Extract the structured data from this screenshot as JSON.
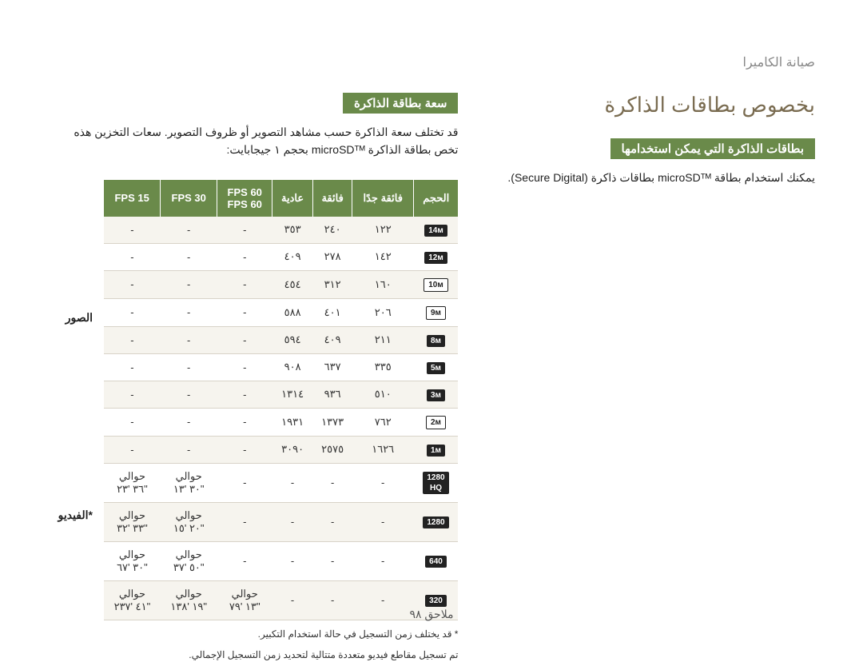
{
  "breadcrumb": "صيانة الكاميرا",
  "page_footer": "ملاحق  ٩٨",
  "right_col": {
    "main_title": "بخصوص بطاقات الذاكرة",
    "section1_tab": "بطاقات الذاكرة التي يمكن استخدامها",
    "section1_text": "يمكنك استخدام بطاقة microSDᵀᴹ بطاقات ذاكرة (Secure Digital)."
  },
  "left_col": {
    "section_tab": "سعة بطاقة الذاكرة",
    "intro_text": "قد تختلف سعة الذاكرة حسب مشاهد التصوير أو ظروف التصوير. سعات التخزين هذه تخص بطاقة الذاكرة microSDᵀᴹ بحجم ١ جيجابايت:",
    "footnote1": "* قد يختلف زمن التسجيل في حالة استخدام التكبير.",
    "footnote2": "تم تسجيل مقاطع فيديو متعددة متتالية لتحديد زمن التسجيل الإجمالي.",
    "side_label_photo": "الصور",
    "side_label_video": "*الفيديو",
    "table": {
      "background_color": "#ffffff",
      "header_bg": "#6a8a4a",
      "header_text_color": "#ffffff",
      "row_alt_bg": "#f6f4ee",
      "border_color": "#d8d3c8",
      "columns": [
        "الحجم",
        "فائقة جدًا",
        "فائقة",
        "عادية",
        "FPS 60\n60 FPS",
        "FPS 30",
        "FPS 15"
      ],
      "photo_rows": [
        {
          "size": "14ᴍ",
          "style": "solid",
          "v": [
            "١٢٢",
            "٢٤٠",
            "٣٥٣",
            "-",
            "-",
            "-"
          ]
        },
        {
          "size": "12ᴍ",
          "style": "solid",
          "v": [
            "١٤٢",
            "٢٧٨",
            "٤٠٩",
            "-",
            "-",
            "-"
          ]
        },
        {
          "size": "10ᴍ",
          "style": "outline",
          "v": [
            "١٦٠",
            "٣١٢",
            "٤٥٤",
            "-",
            "-",
            "-"
          ]
        },
        {
          "size": "9ᴍ",
          "style": "outline",
          "v": [
            "٢٠٦",
            "٤٠١",
            "٥٨٨",
            "-",
            "-",
            "-"
          ]
        },
        {
          "size": "8ᴍ",
          "style": "solid",
          "v": [
            "٢١١",
            "٤٠٩",
            "٥٩٤",
            "-",
            "-",
            "-"
          ]
        },
        {
          "size": "5ᴍ",
          "style": "solid",
          "v": [
            "٣٣٥",
            "٦٣٧",
            "٩٠٨",
            "-",
            "-",
            "-"
          ]
        },
        {
          "size": "3ᴍ",
          "style": "solid",
          "v": [
            "٥١٠",
            "٩٣٦",
            "١٣١٤",
            "-",
            "-",
            "-"
          ]
        },
        {
          "size": "2ᴍ",
          "style": "outline",
          "v": [
            "٧٦٢",
            "١٣٧٣",
            "١٩٣١",
            "-",
            "-",
            "-"
          ]
        },
        {
          "size": "1ᴍ",
          "style": "solid",
          "v": [
            "١٦٢٦",
            "٢٥٧٥",
            "٣٠٩٠",
            "-",
            "-",
            "-"
          ]
        }
      ],
      "video_rows": [
        {
          "size": "1280\nHQ",
          "style": "solid",
          "v": [
            "-",
            "-",
            "-",
            "-",
            "حوالي\n\"٣٠ '١٣",
            "حوالي\n\"٣٦ '٢٣"
          ]
        },
        {
          "size": "1280",
          "style": "solid",
          "v": [
            "-",
            "-",
            "-",
            "-",
            "حوالي\n\"٢٠ '١٥",
            "حوالي\n\"٣٣ '٣٢"
          ]
        },
        {
          "size": "640",
          "style": "solid",
          "v": [
            "-",
            "-",
            "-",
            "-",
            "حوالي\n\"٥٠ '٣٧",
            "حوالي\n\"٣٠ '٦٧"
          ]
        },
        {
          "size": "320",
          "style": "solid",
          "v": [
            "-",
            "-",
            "-",
            "حوالي\n\"١٣ '٧٩",
            "حوالي\n\"١٩ '١٣٨",
            "حوالي\n\"٤١ '٢٣٧"
          ]
        }
      ]
    }
  }
}
